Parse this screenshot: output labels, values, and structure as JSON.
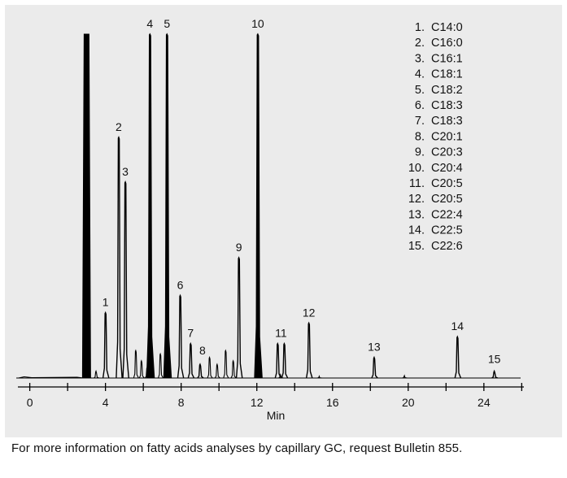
{
  "chart_data": {
    "type": "line",
    "title": "",
    "xlabel": "Min",
    "ylabel": "",
    "xlim": [
      -0.8,
      26.2
    ],
    "x_ticks": [
      0,
      4,
      8,
      12,
      16,
      20,
      24
    ],
    "x_minor_ticks": [
      2,
      6,
      10,
      14,
      18,
      22,
      26
    ],
    "grid": false,
    "legend_position": "top-right",
    "series_color": "#000000",
    "solvent_peak": {
      "x": 3.0,
      "height": 1.0,
      "clipped": true
    },
    "peaks": [
      {
        "label": "1",
        "x": 4.0,
        "height": 0.19
      },
      {
        "label": "2",
        "x": 4.7,
        "height": 0.7
      },
      {
        "label": "3",
        "x": 5.05,
        "height": 0.57
      },
      {
        "label": "4",
        "x": 6.35,
        "height": 1.0
      },
      {
        "label": "5",
        "x": 7.25,
        "height": 1.0
      },
      {
        "label": "6",
        "x": 7.95,
        "height": 0.24
      },
      {
        "label": "7",
        "x": 8.5,
        "height": 0.1
      },
      {
        "label": "8",
        "x": 9.0,
        "height": 0.04
      },
      {
        "label": "9",
        "x": 11.05,
        "height": 0.35
      },
      {
        "label": "10",
        "x": 12.05,
        "height": 1.0
      },
      {
        "label": "11",
        "x": 13.1,
        "height": 0.1
      },
      {
        "label": "11",
        "x": 13.45,
        "height": 0.1
      },
      {
        "label": "12",
        "x": 14.75,
        "height": 0.16
      },
      {
        "label": "13",
        "x": 18.2,
        "height": 0.06
      },
      {
        "label": "14",
        "x": 22.6,
        "height": 0.12
      },
      {
        "label": "15",
        "x": 24.55,
        "height": 0.02
      }
    ],
    "minor_peaks": [
      {
        "x": 3.1,
        "height": 0.02
      },
      {
        "x": 3.5,
        "height": 0.02
      },
      {
        "x": 5.6,
        "height": 0.08
      },
      {
        "x": 5.9,
        "height": 0.05
      },
      {
        "x": 6.2,
        "height": 0.03
      },
      {
        "x": 6.9,
        "height": 0.07
      },
      {
        "x": 9.5,
        "height": 0.06
      },
      {
        "x": 9.9,
        "height": 0.04
      },
      {
        "x": 10.35,
        "height": 0.08
      },
      {
        "x": 10.75,
        "height": 0.05
      },
      {
        "x": 13.25,
        "height": 0.01
      },
      {
        "x": 15.3,
        "height": 0.005
      },
      {
        "x": 19.8,
        "height": 0.007
      }
    ],
    "legend": [
      "1.  C14:0",
      "2.  C16:0",
      "3.  C16:1",
      "4.  C18:1",
      "5.  C18:2",
      "6.  C18:3",
      "7.  C18:3",
      "8.  C20:1",
      "9.  C20:3",
      "10.  C20:4",
      "11.  C20:5",
      "12.  C20:5",
      "13.  C22:4",
      "14.  C22:5",
      "15.  C22:6"
    ]
  },
  "caption": "For more information on fatty acids analyses by capillary GC, request Bulletin 855."
}
